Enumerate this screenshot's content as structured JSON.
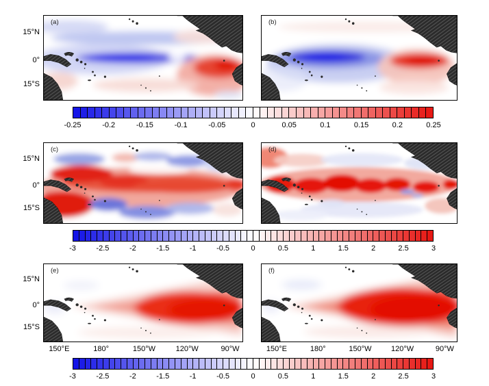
{
  "figure": {
    "background": "#ffffff",
    "panels": [
      {
        "label": "(a)"
      },
      {
        "label": "(b)"
      },
      {
        "label": "(c)"
      },
      {
        "label": "(d)"
      },
      {
        "label": "(e)"
      },
      {
        "label": "(f)"
      }
    ],
    "y_axis_ticks": [
      "15°N",
      "0°",
      "15°S"
    ],
    "x_axis_ticks": [
      "150°E",
      "180°",
      "150°W",
      "120°W",
      "90°W"
    ],
    "colorbars": [
      {
        "min": -0.25,
        "max": 0.25,
        "cells": 50,
        "tick_labels": [
          "-0.25",
          "-0.2",
          "-0.15",
          "-0.1",
          "-0.05",
          "0",
          "0.05",
          "0.1",
          "0.15",
          "0.2",
          "0.25"
        ]
      },
      {
        "min": -3,
        "max": 3,
        "cells": 60,
        "tick_labels": [
          "-3",
          "-2.5",
          "-2",
          "-1.5",
          "-1",
          "-0.5",
          "0",
          "0.5",
          "1",
          "1.5",
          "2",
          "2.5",
          "3"
        ]
      },
      {
        "min": -3,
        "max": 3,
        "cells": 60,
        "tick_labels": [
          "-3",
          "-2.5",
          "-2",
          "-1.5",
          "-1",
          "-0.5",
          "0",
          "0.5",
          "1",
          "1.5",
          "2",
          "2.5",
          "3"
        ]
      }
    ],
    "colors": {
      "negative_extreme": "#1010e6",
      "positive_extreme": "#e61410",
      "land": "#2b2b2b",
      "border": "#000000",
      "background": "#ffffff"
    }
  },
  "chart_data": [
    {
      "type": "heatmap",
      "panel": "(a)",
      "x_ticks": [
        "150°E",
        "180°",
        "150°W",
        "120°W",
        "90°W"
      ],
      "y_ticks": [
        "15°N",
        "0°",
        "15°S"
      ],
      "value_range": [
        -0.25,
        0.25
      ],
      "colormap": "blue-white-red",
      "grid": false,
      "pattern": "Narrow negative band (≈ -0.25) along the equator in the west-central Pacific; strong positive maximum (≈ +0.25) in the far-eastern equatorial Pacific off South America; weak negatives north of 10°N and weak positives in the southeast."
    },
    {
      "type": "heatmap",
      "panel": "(b)",
      "x_ticks": [
        "150°E",
        "180°",
        "150°W",
        "120°W",
        "90°W"
      ],
      "y_ticks": [
        "15°N",
        "0°",
        "15°S"
      ],
      "value_range": [
        -0.25,
        0.25
      ],
      "colormap": "blue-white-red",
      "grid": false,
      "pattern": "Smoothed dipole: coherent negative pole (≈ -0.25) on the equator near 170°E-160°W and a compact positive pole (≈ +0.25) near 110-90°W; weak positive background in the east."
    },
    {
      "type": "heatmap",
      "panel": "(c)",
      "x_ticks": [
        "150°E",
        "180°",
        "150°W",
        "120°W",
        "90°W"
      ],
      "y_ticks": [
        "15°N",
        "0°",
        "15°S"
      ],
      "value_range": [
        -3,
        3
      ],
      "colormap": "blue-white-red",
      "grid": false,
      "pattern": "Broad positive band (≈ +2 to +3) spanning the equatorial Pacific, strongest in the far west and southwest near New Guinea; scattered negative patches (≈ -1 to -1.5) near 15°N and 10-15°S."
    },
    {
      "type": "heatmap",
      "panel": "(d)",
      "x_ticks": [
        "150°E",
        "180°",
        "150°W",
        "120°W",
        "90°W"
      ],
      "y_ticks": [
        "15°N",
        "0°",
        "15°S"
      ],
      "value_range": [
        -3,
        3
      ],
      "colormap": "blue-white-red",
      "grid": false,
      "pattern": "Very patchy strong positive anomalies (≈ +3) concentrated in a band along the equator across the whole basin; weak negatives (≈ -0.5) off-equator to the north and south."
    },
    {
      "type": "heatmap",
      "panel": "(e)",
      "x_ticks": [
        "150°E",
        "180°",
        "150°W",
        "120°W",
        "90°W"
      ],
      "y_ticks": [
        "15°N",
        "0°",
        "15°S"
      ],
      "value_range": [
        -3,
        3
      ],
      "colormap": "blue-white-red",
      "grid": false,
      "pattern": "Smooth El Nino-like warming: positive anomaly widening eastward from ≈170°E, maximum (≈ +3) in the eastern equatorial Pacific near 120-90°W; near zero in the far west."
    },
    {
      "type": "heatmap",
      "panel": "(f)",
      "x_ticks": [
        "150°E",
        "180°",
        "150°W",
        "120°W",
        "90°W"
      ],
      "y_ticks": [
        "15°N",
        "0°",
        "15°S"
      ],
      "value_range": [
        -3,
        3
      ],
      "colormap": "blue-white-red",
      "grid": false,
      "pattern": "As panel (e) but stronger and broader: intense positive anomaly (≈ +3) covering the central-eastern equatorial Pacific; weak negatives in the far northwest."
    }
  ]
}
